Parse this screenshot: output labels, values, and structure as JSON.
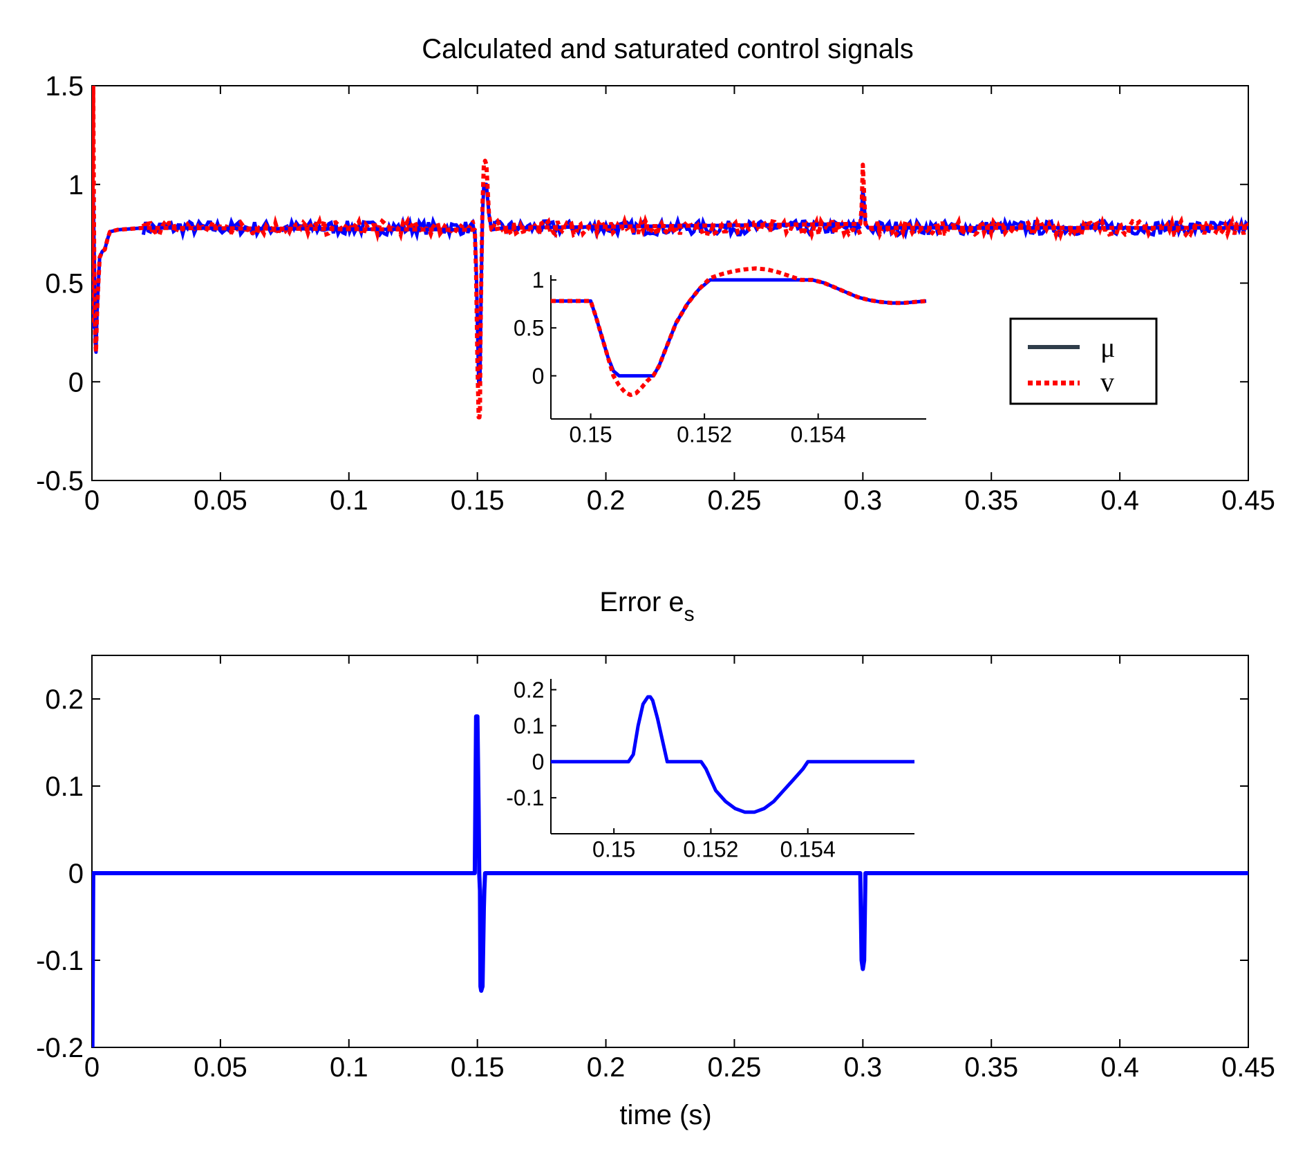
{
  "colors": {
    "mu_line": "#0000ff",
    "v_line": "#ff0000",
    "legend_mu_swatch": "#2f3d4a",
    "axes": "#000000",
    "background": "#ffffff"
  },
  "chart_data": [
    {
      "id": "top",
      "type": "line",
      "title": "Calculated and saturated control signals",
      "xlabel": "",
      "ylabel": "",
      "xlim": [
        0,
        0.45
      ],
      "ylim": [
        -0.5,
        1.5
      ],
      "xticks": [
        0,
        0.05,
        0.1,
        0.15,
        0.2,
        0.25,
        0.3,
        0.35,
        0.4,
        0.45
      ],
      "xtick_labels": [
        "0",
        "0.05",
        "0.1",
        "0.15",
        "0.2",
        "0.25",
        "0.3",
        "0.35",
        "0.4",
        "0.45"
      ],
      "yticks": [
        -0.5,
        0,
        0.5,
        1,
        1.5
      ],
      "ytick_labels": [
        "-0.5",
        "0",
        "0.5",
        "1",
        "1.5"
      ],
      "grid": false,
      "legend": {
        "placement": "inside-right",
        "entries": [
          "μ",
          "v"
        ]
      },
      "series": [
        {
          "name": "μ",
          "style": "solid",
          "color": "#0000ff",
          "x": [
            0,
            0.0005,
            0.001,
            0.0013,
            0.0016,
            0.002,
            0.0025,
            0.003,
            0.004,
            0.005,
            0.006,
            0.007,
            0.01,
            0.02,
            0.149,
            0.1495,
            0.15,
            0.1505,
            0.1508,
            0.151,
            0.1512,
            0.1515,
            0.152,
            0.1525,
            0.153,
            0.1535,
            0.1545,
            0.1555,
            0.16,
            0.299,
            0.2995,
            0.3,
            0.3005,
            0.301,
            0.302,
            0.303,
            0.305,
            0.45
          ],
          "y": [
            0.27,
            0.95,
            0.55,
            0.2,
            0.15,
            0.35,
            0.5,
            0.63,
            0.66,
            0.67,
            0.72,
            0.76,
            0.77,
            0.78,
            0.77,
            0.6,
            0.3,
            0,
            0,
            0,
            0.2,
            0.5,
            0.85,
            1,
            1,
            1,
            0.85,
            0.77,
            0.78,
            0.8,
            0.85,
            0.98,
            0.9,
            0.8,
            0.78,
            0.78,
            0.78,
            0.78
          ]
        },
        {
          "name": "v",
          "style": "dotted",
          "color": "#ff0000",
          "x": [
            0,
            0.0005,
            0.0009,
            0.0013,
            0.0016,
            0.002,
            0.0025,
            0.003,
            0.004,
            0.005,
            0.006,
            0.007,
            0.01,
            0.02,
            0.149,
            0.1495,
            0.15,
            0.1505,
            0.1508,
            0.151,
            0.1512,
            0.1515,
            0.152,
            0.1525,
            0.153,
            0.1535,
            0.1545,
            0.1555,
            0.16,
            0.299,
            0.2995,
            0.3,
            0.3005,
            0.301,
            0.302,
            0.303,
            0.305,
            0.45
          ],
          "y": [
            0.3,
            1.5,
            0.6,
            0.2,
            0.15,
            0.35,
            0.5,
            0.63,
            0.66,
            0.67,
            0.72,
            0.76,
            0.77,
            0.78,
            0.77,
            0.55,
            0.1,
            -0.18,
            -0.18,
            -0.15,
            0.2,
            0.5,
            0.9,
            1.1,
            1.12,
            1.1,
            0.85,
            0.77,
            0.78,
            0.8,
            0.88,
            1.1,
            0.95,
            0.8,
            0.78,
            0.78,
            0.78,
            0.78
          ]
        }
      ],
      "noise_band": {
        "around": 0.78,
        "amplitude": 0.035,
        "note_x_ranges": [
          [
            0.02,
            0.149
          ],
          [
            0.156,
            0.299
          ],
          [
            0.303,
            0.45
          ]
        ]
      }
    },
    {
      "id": "top-inset",
      "type": "line",
      "title": "",
      "xlim": [
        0.1493,
        0.1559
      ],
      "ylim": [
        -0.45,
        1.05
      ],
      "xticks": [
        0.15,
        0.152,
        0.154
      ],
      "xtick_labels": [
        "0.15",
        "0.152",
        "0.154"
      ],
      "yticks": [
        0,
        0.5,
        1
      ],
      "ytick_labels": [
        "0",
        "0.5",
        "1"
      ],
      "series": [
        {
          "name": "μ",
          "style": "solid",
          "color": "#0000ff",
          "x": [
            0.1493,
            0.15,
            0.1501,
            0.1502,
            0.1503,
            0.1504,
            0.1505,
            0.1506,
            0.1507,
            0.1508,
            0.1509,
            0.151,
            0.1511,
            0.1512,
            0.1513,
            0.1514,
            0.1515,
            0.1517,
            0.1519,
            0.1521,
            0.1523,
            0.1525,
            0.1527,
            0.1529,
            0.1531,
            0.1533,
            0.1535,
            0.1537,
            0.1539,
            0.1541,
            0.1543,
            0.1545,
            0.1547,
            0.1549,
            0.1551,
            0.1553,
            0.1555,
            0.1559
          ],
          "y": [
            0.78,
            0.78,
            0.6,
            0.4,
            0.2,
            0.05,
            0,
            0,
            0,
            0,
            0,
            0,
            0,
            0.1,
            0.25,
            0.4,
            0.55,
            0.75,
            0.9,
            1,
            1,
            1,
            1,
            1,
            1,
            1,
            1,
            1,
            1,
            0.97,
            0.92,
            0.87,
            0.82,
            0.79,
            0.77,
            0.76,
            0.76,
            0.78
          ]
        },
        {
          "name": "v",
          "style": "dotted",
          "color": "#ff0000",
          "x": [
            0.1493,
            0.15,
            0.1501,
            0.1502,
            0.1503,
            0.1504,
            0.1505,
            0.1506,
            0.1507,
            0.1508,
            0.1509,
            0.151,
            0.1511,
            0.1512,
            0.1513,
            0.1514,
            0.1515,
            0.1517,
            0.1519,
            0.1521,
            0.1523,
            0.1525,
            0.1527,
            0.1529,
            0.1531,
            0.1533,
            0.1535,
            0.1537,
            0.1539,
            0.1541,
            0.1543,
            0.1545,
            0.1547,
            0.1549,
            0.1551,
            0.1553,
            0.1555,
            0.1559
          ],
          "y": [
            0.78,
            0.78,
            0.6,
            0.4,
            0.2,
            0.0,
            -0.1,
            -0.17,
            -0.2,
            -0.18,
            -0.12,
            -0.05,
            0,
            0.1,
            0.25,
            0.4,
            0.55,
            0.75,
            0.9,
            1.02,
            1.06,
            1.09,
            1.11,
            1.12,
            1.11,
            1.08,
            1.04,
            1.0,
            1.0,
            0.97,
            0.92,
            0.87,
            0.82,
            0.79,
            0.77,
            0.76,
            0.76,
            0.78
          ]
        }
      ]
    },
    {
      "id": "bottom",
      "type": "line",
      "title": "Error e",
      "title_subscript": "s",
      "xlabel": "time (s)",
      "ylabel": "",
      "xlim": [
        0,
        0.45
      ],
      "ylim": [
        -0.2,
        0.25
      ],
      "xticks": [
        0,
        0.05,
        0.1,
        0.15,
        0.2,
        0.25,
        0.3,
        0.35,
        0.4,
        0.45
      ],
      "xtick_labels": [
        "0",
        "0.05",
        "0.1",
        "0.15",
        "0.2",
        "0.25",
        "0.3",
        "0.35",
        "0.4",
        "0.45"
      ],
      "yticks": [
        -0.2,
        -0.1,
        0,
        0.1,
        0.2
      ],
      "ytick_labels": [
        "-0.2",
        "-0.1",
        "0",
        "0.1",
        "0.2"
      ],
      "grid": false,
      "series": [
        {
          "name": "",
          "style": "solid",
          "color": "#0000ff",
          "x": [
            0,
            0.0002,
            0.0005,
            0.001,
            0.149,
            0.1495,
            0.15,
            0.1505,
            0.1507,
            0.151,
            0.1512,
            0.1515,
            0.152,
            0.1525,
            0.1527,
            0.153,
            0.1535,
            0.154,
            0.299,
            0.2995,
            0.3,
            0.3005,
            0.301,
            0.45
          ],
          "y": [
            -0.2,
            -0.2,
            0,
            0,
            0,
            0.18,
            0.18,
            0.07,
            0,
            -0.02,
            -0.13,
            -0.135,
            -0.13,
            -0.04,
            -0.02,
            0,
            0,
            0,
            0,
            -0.1,
            -0.11,
            -0.1,
            0,
            0
          ]
        }
      ]
    },
    {
      "id": "bottom-inset",
      "type": "line",
      "title": "",
      "xlim": [
        0.1487,
        0.1562
      ],
      "ylim": [
        -0.2,
        0.23
      ],
      "xticks": [
        0.15,
        0.152,
        0.154
      ],
      "xtick_labels": [
        "0.15",
        "0.152",
        "0.154"
      ],
      "yticks": [
        -0.1,
        0,
        0.1,
        0.2
      ],
      "ytick_labels": [
        "-0.1",
        "0",
        "0.1",
        "0.2"
      ],
      "series": [
        {
          "name": "",
          "style": "solid",
          "color": "#0000ff",
          "x": [
            0.1487,
            0.1503,
            0.1504,
            0.1505,
            0.1506,
            0.1507,
            0.15075,
            0.1508,
            0.1509,
            0.151,
            0.1511,
            0.1513,
            0.1518,
            0.1519,
            0.152,
            0.1521,
            0.1523,
            0.1525,
            0.1527,
            0.1529,
            0.1531,
            0.1533,
            0.1535,
            0.1537,
            0.1539,
            0.154,
            0.1562
          ],
          "y": [
            0,
            0,
            0.02,
            0.1,
            0.16,
            0.18,
            0.18,
            0.17,
            0.12,
            0.06,
            0,
            0,
            0,
            -0.02,
            -0.05,
            -0.08,
            -0.11,
            -0.13,
            -0.14,
            -0.14,
            -0.13,
            -0.11,
            -0.08,
            -0.05,
            -0.02,
            0,
            0
          ]
        }
      ]
    }
  ]
}
